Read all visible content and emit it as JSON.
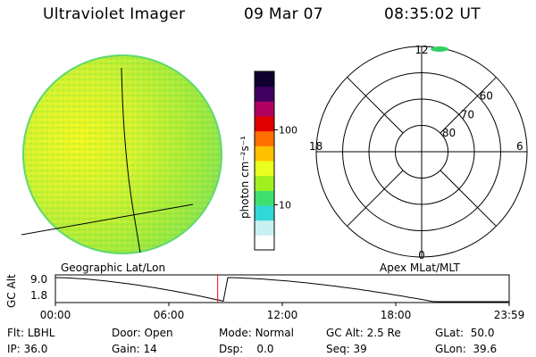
{
  "header": {
    "instrument": "Ultraviolet Imager",
    "date": "09 Mar 07",
    "time": "08:35:02 UT"
  },
  "colorbar": {
    "unit_label": "photon cm⁻²s⁻¹",
    "tick_labels": [
      "100",
      "10"
    ],
    "tick_values": [
      100,
      10
    ],
    "range": [
      2.5,
      600
    ],
    "colors": [
      "#ffffff",
      "#c8f0f0",
      "#30d8d8",
      "#40e070",
      "#a0f020",
      "#e8ff20",
      "#ffc000",
      "#ff7000",
      "#e00000",
      "#b00060",
      "#400060",
      "#100030"
    ]
  },
  "polar_plot": {
    "mlt_labels": {
      "top": "12",
      "left": "18",
      "right": "6",
      "bottom": "0"
    },
    "lat_labels": [
      "60",
      "70",
      "80"
    ],
    "lat_values": [
      60,
      70,
      80
    ],
    "lat_min": 50
  },
  "altitude_panel": {
    "left_label": "Geographic Lat/Lon",
    "right_label": "Apex  MLat/MLT",
    "axis_label": "GC Alt",
    "ymax_label": "9.0",
    "ymin_label": "1.8",
    "y_range": [
      1.8,
      9.0
    ],
    "marker_time": "08:35",
    "marker_color": "#ff0000",
    "time_ticks": [
      "00:00",
      "06:00",
      "12:00",
      "18:00",
      "23:59"
    ]
  },
  "status": {
    "filter": {
      "label": "Flt:",
      "value": "LBHL"
    },
    "ip": {
      "label": "IP:",
      "value": "36.0"
    },
    "door": {
      "label": "Door:",
      "value": "Open"
    },
    "gain": {
      "label": "Gain:",
      "value": "14"
    },
    "mode": {
      "label": "Mode:",
      "value": "Normal"
    },
    "dsp": {
      "label": "Dsp:",
      "value": "0.0"
    },
    "gc_alt": {
      "label": "GC Alt:",
      "value": "2.5 Re"
    },
    "seq": {
      "label": "Seq:",
      "value": "39"
    },
    "glat": {
      "label": "GLat:",
      "value": "50.0"
    },
    "glon": {
      "label": "GLon:",
      "value": "39.6"
    }
  }
}
